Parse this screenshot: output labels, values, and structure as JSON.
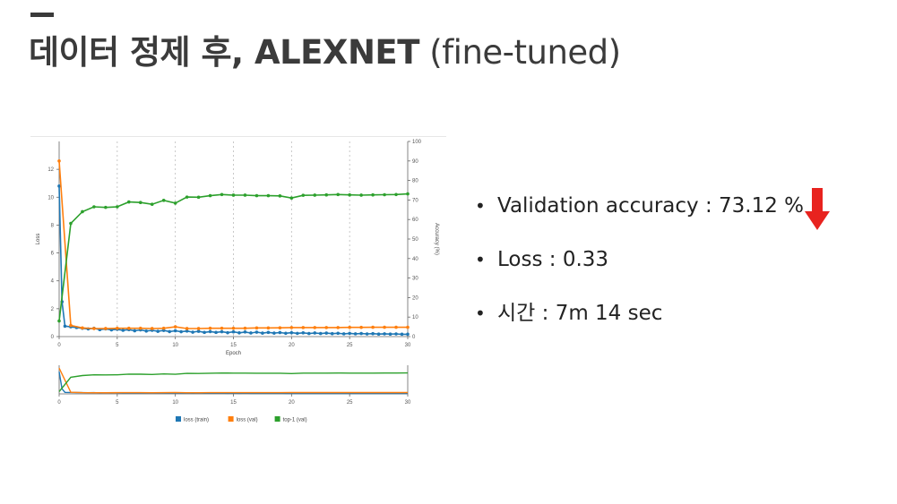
{
  "slide": {
    "title_main": "데이터 정제 후, ALEXNET",
    "title_sub": " (fine-tuned)",
    "bullets": [
      {
        "text": "Validation accuracy : 73.12 %"
      },
      {
        "text": "Loss : 0.33"
      },
      {
        "text": "시간 : 7m 14 sec"
      }
    ],
    "indicator": {
      "icon": "down-arrow-icon",
      "color": "#e8231f"
    }
  },
  "chart_data": {
    "type": "line",
    "xlabel": "Epoch",
    "ylabel_left": "Loss",
    "ylabel_right": "Accuracy (%)",
    "xlim": [
      0,
      30
    ],
    "ylim_left": [
      0,
      14
    ],
    "ylim_right": [
      0,
      100
    ],
    "x_ticks": [
      0,
      5,
      10,
      15,
      20,
      25,
      30
    ],
    "y_ticks_left": [
      0,
      2,
      4,
      6,
      8,
      10,
      12
    ],
    "y_ticks_right": [
      0,
      10,
      20,
      30,
      40,
      50,
      60,
      70,
      80,
      90,
      100
    ],
    "grid": "vertical dotted lines at x ticks",
    "legend_position": "bottom",
    "colors": {
      "loss_train": "#1f77b4",
      "loss_val": "#ff7f0e",
      "top1_val": "#2ca02c"
    },
    "series": [
      {
        "name": "loss (train)",
        "axis": "left",
        "x": [
          0,
          0.25,
          0.5,
          1,
          1.5,
          2,
          2.5,
          3,
          3.5,
          4,
          4.5,
          5,
          5.5,
          6,
          6.5,
          7,
          7.5,
          8,
          8.5,
          9,
          9.5,
          10,
          10.5,
          11,
          11.5,
          12,
          12.5,
          13,
          13.5,
          14,
          14.5,
          15,
          15.5,
          16,
          16.5,
          17,
          17.5,
          18,
          18.5,
          19,
          19.5,
          20,
          20.5,
          21,
          21.5,
          22,
          22.5,
          23,
          23.5,
          24,
          24.5,
          25,
          25.5,
          26,
          26.5,
          27,
          27.5,
          28,
          28.5,
          29,
          29.5,
          30
        ],
        "values": [
          10.8,
          2.5,
          0.75,
          0.7,
          0.65,
          0.6,
          0.55,
          0.6,
          0.5,
          0.55,
          0.48,
          0.52,
          0.45,
          0.5,
          0.42,
          0.48,
          0.4,
          0.45,
          0.38,
          0.44,
          0.36,
          0.42,
          0.35,
          0.4,
          0.32,
          0.38,
          0.3,
          0.36,
          0.3,
          0.35,
          0.28,
          0.34,
          0.27,
          0.33,
          0.26,
          0.32,
          0.25,
          0.3,
          0.25,
          0.29,
          0.24,
          0.28,
          0.23,
          0.27,
          0.22,
          0.26,
          0.22,
          0.25,
          0.21,
          0.24,
          0.2,
          0.23,
          0.2,
          0.22,
          0.19,
          0.21,
          0.18,
          0.2,
          0.18,
          0.19,
          0.17,
          0.17
        ]
      },
      {
        "name": "loss (val)",
        "axis": "left",
        "x": [
          0,
          1,
          2,
          3,
          4,
          5,
          6,
          7,
          8,
          9,
          10,
          11,
          12,
          13,
          14,
          15,
          16,
          17,
          18,
          19,
          20,
          21,
          22,
          23,
          24,
          25,
          26,
          27,
          28,
          29,
          30
        ],
        "values": [
          12.6,
          0.8,
          0.62,
          0.58,
          0.58,
          0.6,
          0.6,
          0.6,
          0.58,
          0.6,
          0.7,
          0.58,
          0.58,
          0.6,
          0.6,
          0.6,
          0.6,
          0.62,
          0.62,
          0.63,
          0.65,
          0.65,
          0.65,
          0.65,
          0.65,
          0.66,
          0.66,
          0.67,
          0.67,
          0.67,
          0.67
        ]
      },
      {
        "name": "top-1 (val)",
        "axis": "right",
        "x": [
          0,
          1,
          2,
          3,
          4,
          5,
          6,
          7,
          8,
          9,
          10,
          11,
          12,
          13,
          14,
          15,
          16,
          17,
          18,
          19,
          20,
          21,
          22,
          23,
          24,
          25,
          26,
          27,
          28,
          29,
          30
        ],
        "values": [
          8,
          58,
          64,
          66.5,
          66.2,
          66.5,
          69,
          68.7,
          67.8,
          69.8,
          68.4,
          71.5,
          71.4,
          72.2,
          72.8,
          72.5,
          72.5,
          72.2,
          72.2,
          72.1,
          71,
          72.4,
          72.5,
          72.6,
          72.8,
          72.6,
          72.5,
          72.6,
          72.7,
          72.8,
          73.12
        ]
      }
    ]
  }
}
